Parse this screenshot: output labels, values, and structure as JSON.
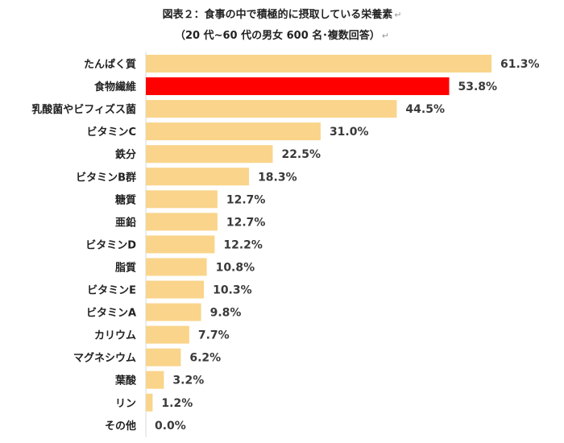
{
  "title_line1": "図表２：食事の中で積極的に摂取している栄養素",
  "title_line2": "（20 代~60 代の男女 600 名･複数回答）",
  "return_mark": "↵",
  "colors": {
    "bar": "#F9D48A",
    "highlight": "#FF0000",
    "text": "#3a3a3a"
  },
  "chart_data": {
    "type": "bar",
    "orientation": "horizontal",
    "title": "図表２：食事の中で積極的に摂取している栄養素",
    "subtitle": "（20 代~60 代の男女 600 名･複数回答）",
    "xlabel": "",
    "ylabel": "",
    "xlim": [
      0,
      61.3
    ],
    "grid": false,
    "legend": "none",
    "unit": "%",
    "highlight_index": 1,
    "categories": [
      "たんぱく質",
      "食物繊維",
      "乳酸菌やビフィズス菌",
      "ビタミンC",
      "鉄分",
      "ビタミンB群",
      "糖質",
      "亜鉛",
      "ビタミンD",
      "脂質",
      "ビタミンE",
      "ビタミンA",
      "カリウム",
      "マグネシウム",
      "葉酸",
      "リン",
      "その他"
    ],
    "values": [
      61.3,
      53.8,
      44.5,
      31.0,
      22.5,
      18.3,
      12.7,
      12.7,
      12.2,
      10.8,
      10.3,
      9.8,
      7.7,
      6.2,
      3.2,
      1.2,
      0.0
    ],
    "value_labels": [
      "61.3%",
      "53.8%",
      "44.5%",
      "31.0%",
      "22.5%",
      "18.3%",
      "12.7%",
      "12.7%",
      "12.2%",
      "10.8%",
      "10.3%",
      "9.8%",
      "7.7%",
      "6.2%",
      "3.2%",
      "1.2%",
      "0.0%"
    ]
  }
}
